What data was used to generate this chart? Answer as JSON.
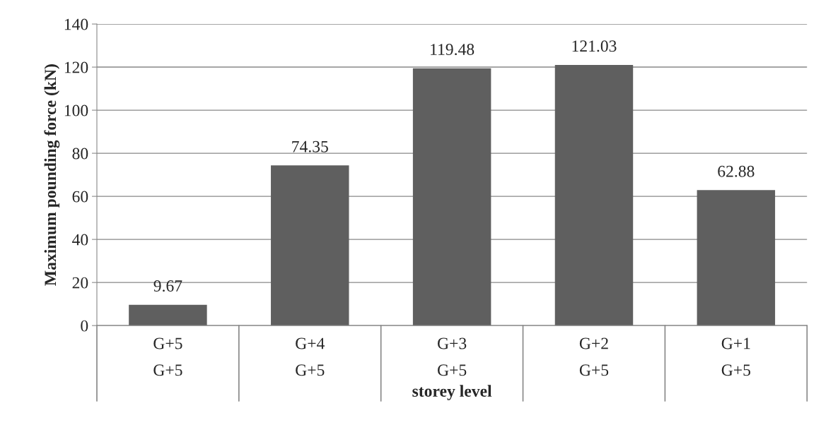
{
  "chart_data": {
    "type": "bar",
    "xlabel": "storey level",
    "ylabel": "Maximum pounding force (kN)",
    "categories": [
      "G+5\nG+5",
      "G+4\nG+5",
      "G+3\nG+5",
      "G+2\nG+5",
      "G+1\nG+5"
    ],
    "values": [
      9.67,
      74.35,
      119.48,
      121.03,
      62.88
    ],
    "color": "#5f5f5f",
    "ylim": [
      0,
      140
    ],
    "yticks": [
      0,
      20,
      40,
      60,
      80,
      100,
      120,
      140
    ],
    "grid": "y",
    "data_labels": true
  }
}
